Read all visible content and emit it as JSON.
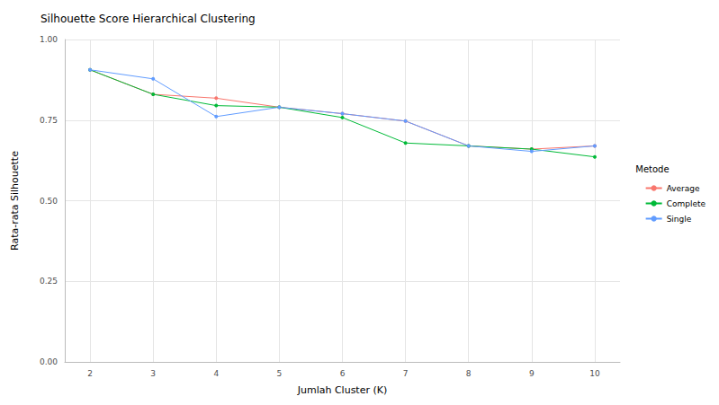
{
  "chart_data": {
    "type": "line",
    "title": "Silhouette Score Hierarchical Clustering",
    "x_label": "Jumlah Cluster (K)",
    "y_label": "Rata-rata Silhouette",
    "legend_title": "Metode",
    "x": [
      2,
      3,
      4,
      5,
      6,
      7,
      8,
      9,
      10
    ],
    "series": [
      {
        "name": "Average",
        "color": "#F8766D",
        "values": [
          0.906,
          0.83,
          0.818,
          0.79,
          0.77,
          0.747,
          0.67,
          0.66,
          0.67
        ]
      },
      {
        "name": "Complete",
        "color": "#00BA38",
        "values": [
          0.906,
          0.83,
          0.795,
          0.79,
          0.758,
          0.679,
          0.67,
          0.66,
          0.636
        ]
      },
      {
        "name": "Single",
        "color": "#619CFF",
        "values": [
          0.906,
          0.878,
          0.761,
          0.79,
          0.77,
          0.747,
          0.67,
          0.653,
          0.67
        ]
      }
    ],
    "xlim": [
      1.6,
      10.4
    ],
    "xticks": [
      2,
      3,
      4,
      5,
      6,
      7,
      8,
      9,
      10
    ],
    "ylim": [
      0,
      1
    ],
    "yticks": [
      {
        "value": 0,
        "label": "0.00"
      },
      {
        "value": 0.25,
        "label": "0.25"
      },
      {
        "value": 0.5,
        "label": "0.50"
      },
      {
        "value": 0.75,
        "label": "0.75"
      },
      {
        "value": 1,
        "label": "1.00"
      }
    ],
    "grid": true,
    "legend": "right",
    "marker": "circle",
    "line_style": "solid"
  }
}
